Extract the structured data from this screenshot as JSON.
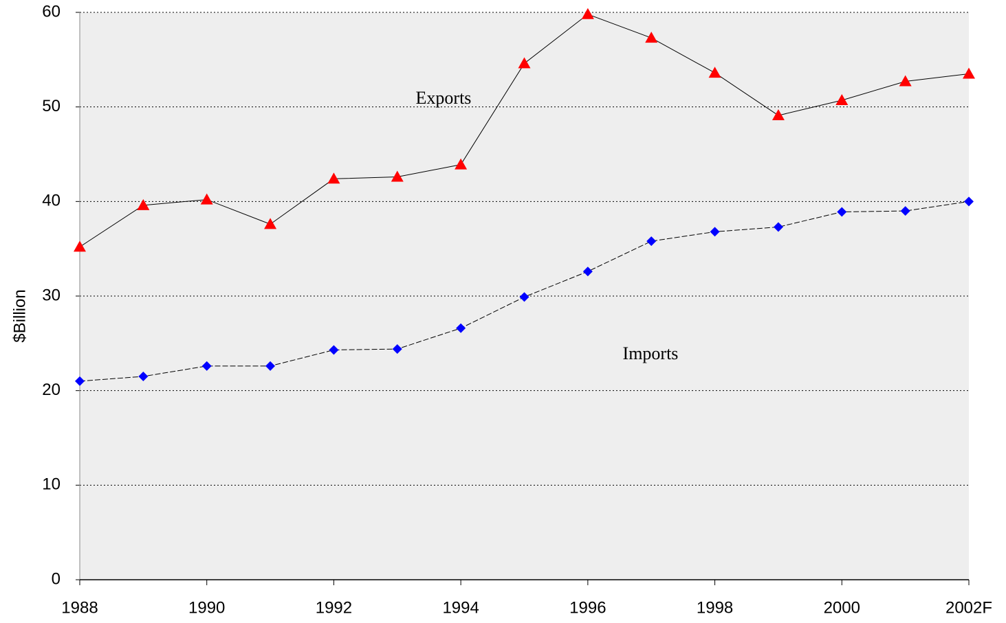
{
  "chart_data": {
    "type": "line",
    "y_label": "$Billion",
    "categories": [
      "1988",
      null,
      "1990",
      null,
      "1992",
      null,
      "1994",
      null,
      "1996",
      null,
      "1998",
      null,
      "2000",
      null,
      "2002F"
    ],
    "series": [
      {
        "name": "Exports",
        "color": "#ff0000",
        "line_color": "#000000",
        "line_style": "solid",
        "marker": "triangle",
        "values": [
          35.2,
          39.6,
          40.2,
          37.6,
          42.4,
          42.6,
          43.9,
          54.6,
          59.8,
          57.3,
          53.6,
          49.1,
          50.7,
          52.7,
          53.5
        ]
      },
      {
        "name": "Imports",
        "color": "#0000ff",
        "line_color": "#000000",
        "line_style": "dashed",
        "marker": "diamond",
        "values": [
          21.0,
          21.5,
          22.6,
          22.6,
          24.3,
          24.4,
          26.6,
          29.9,
          32.6,
          35.8,
          36.8,
          37.3,
          38.9,
          39.0,
          40.0
        ]
      }
    ],
    "ylim": [
      0,
      60
    ],
    "yticks": [
      0,
      10,
      20,
      30,
      40,
      50,
      60
    ],
    "grid": true,
    "legend": false
  }
}
